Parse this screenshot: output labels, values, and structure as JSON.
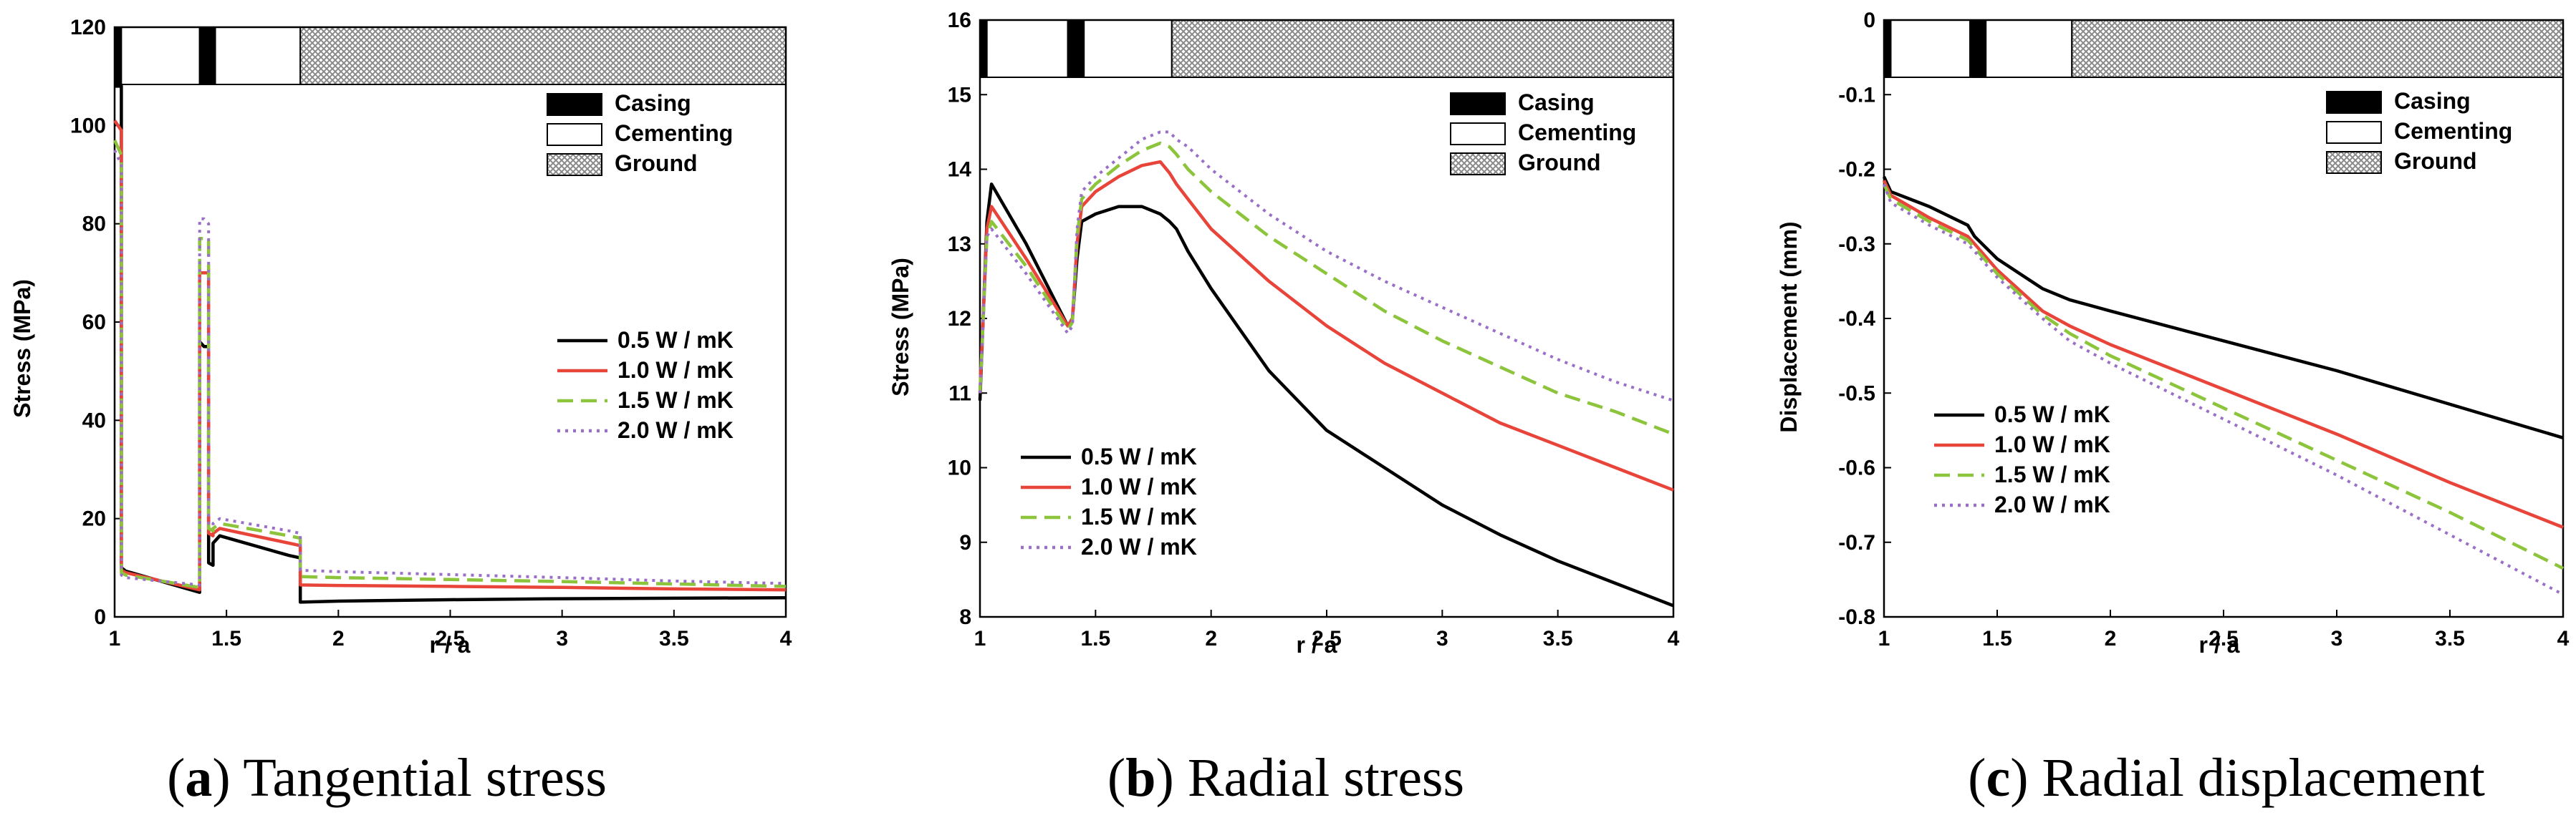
{
  "colors": {
    "series": [
      "#000000",
      "#e8443a",
      "#8cc43c",
      "#9a6fc8"
    ],
    "casing": "#000000",
    "cementing": "#ffffff",
    "ground_hatch": "#9a9a9a"
  },
  "chart_data": [
    {
      "type": "line",
      "panel_letter": "a",
      "caption": "Tangential stress",
      "xlabel": "r / a",
      "ylabel": "Stress (MPa)",
      "xlim": [
        1,
        4
      ],
      "ylim": [
        0,
        120
      ],
      "xticks": [
        1,
        1.5,
        2,
        2.5,
        3,
        3.5,
        4
      ],
      "xtick_labels": [
        "1",
        "1.5",
        "2",
        "2.5",
        "3",
        "3.5",
        "4"
      ],
      "yticks": [
        0,
        20,
        40,
        60,
        80,
        100,
        120
      ],
      "ytick_labels": [
        "0",
        "20",
        "40",
        "60",
        "80",
        "100",
        "120"
      ],
      "material_legend": [
        "Casing",
        "Cementing",
        "Ground"
      ],
      "material_legend_position": "top-right",
      "series_legend_position": "center-right",
      "series": [
        {
          "name": "0.5 W / mK",
          "dash": "solid",
          "x": [
            1.0,
            1.03,
            1.03,
            1.05,
            1.38,
            1.38,
            1.4,
            1.42,
            1.42,
            1.44,
            1.44,
            1.47,
            1.78,
            1.83,
            1.83,
            2.0,
            2.5,
            3.0,
            3.5,
            4.0
          ],
          "y": [
            108,
            108,
            10,
            9.3,
            5,
            56,
            55,
            55,
            11,
            10.5,
            15,
            16.5,
            12.5,
            12,
            3,
            3.2,
            3.5,
            3.7,
            3.8,
            3.9
          ]
        },
        {
          "name": "1.0 W / mK",
          "dash": "solid",
          "x": [
            1.0,
            1.03,
            1.03,
            1.05,
            1.38,
            1.38,
            1.4,
            1.42,
            1.42,
            1.44,
            1.44,
            1.47,
            1.78,
            1.83,
            1.83,
            2.0,
            2.5,
            3.0,
            3.5,
            4.0
          ],
          "y": [
            101,
            99,
            9.5,
            9,
            5.5,
            70,
            70,
            70,
            17,
            16.5,
            17,
            18,
            15,
            14.5,
            6.5,
            6.4,
            6.2,
            6.0,
            5.7,
            5.5
          ]
        },
        {
          "name": "1.5 W / mK",
          "dash": "dashed",
          "x": [
            1.0,
            1.03,
            1.03,
            1.05,
            1.38,
            1.38,
            1.4,
            1.42,
            1.42,
            1.44,
            1.44,
            1.47,
            1.78,
            1.83,
            1.83,
            2.0,
            2.5,
            3.0,
            3.5,
            4.0
          ],
          "y": [
            97,
            94,
            9,
            8.5,
            6,
            77,
            77,
            77,
            18,
            17.5,
            18,
            19,
            16.5,
            16,
            8.2,
            8.0,
            7.6,
            7.2,
            6.7,
            6.2
          ]
        },
        {
          "name": "2.0 W / mK",
          "dash": "dotted",
          "x": [
            1.0,
            1.03,
            1.03,
            1.05,
            1.38,
            1.38,
            1.4,
            1.42,
            1.42,
            1.44,
            1.44,
            1.47,
            1.78,
            1.83,
            1.83,
            2.0,
            2.5,
            3.0,
            3.5,
            4.0
          ],
          "y": [
            95,
            92,
            8.5,
            8,
            6.5,
            81,
            81,
            80,
            19,
            18.5,
            19,
            20,
            17.5,
            17,
            9.5,
            9.2,
            8.6,
            8.0,
            7.3,
            6.8
          ]
        }
      ]
    },
    {
      "type": "line",
      "panel_letter": "b",
      "caption": "Radial stress",
      "xlabel": "r / a",
      "ylabel": "Stress (MPa)",
      "xlim": [
        1,
        4
      ],
      "ylim": [
        8,
        16
      ],
      "xticks": [
        1,
        1.5,
        2,
        2.5,
        3,
        3.5,
        4
      ],
      "xtick_labels": [
        "1",
        "1.5",
        "2",
        "2.5",
        "3",
        "3.5",
        "4"
      ],
      "yticks": [
        8,
        9,
        10,
        11,
        12,
        13,
        14,
        15,
        16
      ],
      "ytick_labels": [
        "8",
        "9",
        "10",
        "11",
        "12",
        "13",
        "14",
        "15",
        "16"
      ],
      "material_legend": [
        "Casing",
        "Cementing",
        "Ground"
      ],
      "material_legend_position": "top-right",
      "series_legend_position": "lower-left",
      "series": [
        {
          "name": "0.5 W / mK",
          "dash": "solid",
          "x": [
            1.0,
            1.03,
            1.05,
            1.2,
            1.38,
            1.4,
            1.42,
            1.44,
            1.5,
            1.6,
            1.7,
            1.78,
            1.82,
            1.85,
            1.9,
            2.0,
            2.25,
            2.5,
            2.75,
            3.0,
            3.25,
            3.5,
            3.75,
            4.0
          ],
          "y": [
            10.9,
            13.3,
            13.8,
            13.0,
            11.9,
            12.0,
            12.8,
            13.3,
            13.4,
            13.5,
            13.5,
            13.4,
            13.3,
            13.2,
            12.9,
            12.4,
            11.3,
            10.5,
            10.0,
            9.5,
            9.1,
            8.75,
            8.45,
            8.15
          ]
        },
        {
          "name": "1.0 W / mK",
          "dash": "solid",
          "x": [
            1.0,
            1.03,
            1.05,
            1.2,
            1.38,
            1.4,
            1.42,
            1.44,
            1.5,
            1.6,
            1.7,
            1.78,
            1.82,
            1.85,
            1.9,
            2.0,
            2.25,
            2.5,
            2.75,
            3.0,
            3.25,
            3.5,
            3.75,
            4.0
          ],
          "y": [
            11.0,
            13.2,
            13.5,
            12.8,
            11.9,
            12.0,
            13.0,
            13.5,
            13.7,
            13.9,
            14.05,
            14.1,
            13.95,
            13.8,
            13.6,
            13.2,
            12.5,
            11.9,
            11.4,
            11.0,
            10.6,
            10.3,
            10.0,
            9.7
          ]
        },
        {
          "name": "1.5 W / mK",
          "dash": "dashed",
          "x": [
            1.0,
            1.03,
            1.05,
            1.2,
            1.38,
            1.4,
            1.42,
            1.44,
            1.5,
            1.6,
            1.7,
            1.78,
            1.82,
            1.85,
            1.9,
            2.0,
            2.25,
            2.5,
            2.75,
            3.0,
            3.25,
            3.5,
            3.75,
            4.0
          ],
          "y": [
            11.0,
            13.1,
            13.3,
            12.7,
            11.85,
            11.95,
            13.1,
            13.6,
            13.8,
            14.05,
            14.25,
            14.35,
            14.3,
            14.2,
            14.0,
            13.7,
            13.1,
            12.6,
            12.1,
            11.7,
            11.35,
            11.0,
            10.75,
            10.45
          ]
        },
        {
          "name": "2.0 W / mK",
          "dash": "dotted",
          "x": [
            1.0,
            1.03,
            1.05,
            1.2,
            1.38,
            1.4,
            1.42,
            1.44,
            1.5,
            1.6,
            1.7,
            1.78,
            1.82,
            1.85,
            1.9,
            2.0,
            2.25,
            2.5,
            2.75,
            3.0,
            3.25,
            3.5,
            3.75,
            4.0
          ],
          "y": [
            11.0,
            13.1,
            13.2,
            12.6,
            11.8,
            11.9,
            13.2,
            13.7,
            13.9,
            14.15,
            14.4,
            14.5,
            14.5,
            14.4,
            14.3,
            14.0,
            13.4,
            12.9,
            12.5,
            12.15,
            11.8,
            11.45,
            11.15,
            10.9
          ]
        }
      ]
    },
    {
      "type": "line",
      "panel_letter": "c",
      "caption": "Radial displacement",
      "xlabel": "r / a",
      "ylabel": "Displacement (mm)",
      "xlim": [
        1,
        4
      ],
      "ylim": [
        -0.8,
        0
      ],
      "xticks": [
        1,
        1.5,
        2,
        2.5,
        3,
        3.5,
        4
      ],
      "xtick_labels": [
        "1",
        "1.5",
        "2",
        "2.5",
        "3",
        "3.5",
        "4"
      ],
      "yticks": [
        -0.8,
        -0.7,
        -0.6,
        -0.5,
        -0.4,
        -0.3,
        -0.2,
        -0.1,
        0
      ],
      "ytick_labels": [
        "-0.8",
        "-0.7",
        "-0.6",
        "-0.5",
        "-0.4",
        "-0.3",
        "-0.2",
        "-0.1",
        "0"
      ],
      "material_legend": [
        "Casing",
        "Cementing",
        "Ground"
      ],
      "material_legend_position": "top-right",
      "series_legend_position": "center-left",
      "series": [
        {
          "name": "0.5 W / mK",
          "dash": "solid",
          "x": [
            1.0,
            1.03,
            1.2,
            1.37,
            1.4,
            1.5,
            1.7,
            1.82,
            2.0,
            2.5,
            3.0,
            3.5,
            4.0
          ],
          "y": [
            -0.21,
            -0.23,
            -0.25,
            -0.275,
            -0.29,
            -0.32,
            -0.36,
            -0.375,
            -0.39,
            -0.43,
            -0.47,
            -0.515,
            -0.56
          ]
        },
        {
          "name": "1.0 W / mK",
          "dash": "solid",
          "x": [
            1.0,
            1.03,
            1.2,
            1.37,
            1.4,
            1.5,
            1.7,
            1.82,
            2.0,
            2.5,
            3.0,
            3.5,
            4.0
          ],
          "y": [
            -0.215,
            -0.235,
            -0.265,
            -0.29,
            -0.3,
            -0.335,
            -0.39,
            -0.41,
            -0.435,
            -0.495,
            -0.555,
            -0.62,
            -0.68
          ]
        },
        {
          "name": "1.5 W / mK",
          "dash": "dashed",
          "x": [
            1.0,
            1.03,
            1.2,
            1.37,
            1.4,
            1.5,
            1.7,
            1.82,
            2.0,
            2.5,
            3.0,
            3.5,
            4.0
          ],
          "y": [
            -0.22,
            -0.24,
            -0.27,
            -0.295,
            -0.305,
            -0.34,
            -0.395,
            -0.42,
            -0.45,
            -0.52,
            -0.59,
            -0.66,
            -0.735
          ]
        },
        {
          "name": "2.0 W / mK",
          "dash": "dotted",
          "x": [
            1.0,
            1.03,
            1.2,
            1.37,
            1.4,
            1.5,
            1.7,
            1.82,
            2.0,
            2.5,
            3.0,
            3.5,
            4.0
          ],
          "y": [
            -0.22,
            -0.245,
            -0.275,
            -0.3,
            -0.31,
            -0.345,
            -0.4,
            -0.43,
            -0.46,
            -0.535,
            -0.61,
            -0.69,
            -0.77
          ]
        }
      ]
    }
  ]
}
